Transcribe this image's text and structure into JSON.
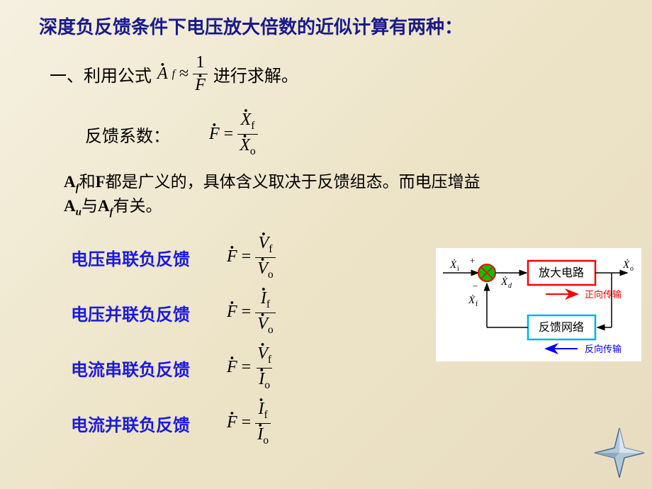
{
  "title": "深度负反馈条件下电压放大倍数的近似计算有两种：",
  "section_one": {
    "prefix": "一、利用公式",
    "suffix": "进行求解。"
  },
  "feedback_coef_label": "反馈系数：",
  "explain": {
    "part1": "A",
    "sub1": "f",
    "part2": "和",
    "part3": "F",
    "part4": "都是广义的，具体含义取决于反馈组态。而电压增益",
    "part5": "A",
    "sub5": "u",
    "part6": "与",
    "part7": "A",
    "sub7": "f",
    "part8": "有关。"
  },
  "feedback_types": [
    {
      "label": "电压串联负反馈",
      "color": "#1a1ae0",
      "num_var": "V",
      "num_sub": "f",
      "den_var": "V",
      "den_sub": "o"
    },
    {
      "label": "电压并联负反馈",
      "color": "#1a1ae0",
      "num_var": "I",
      "num_sub": "f",
      "den_var": "V",
      "den_sub": "o"
    },
    {
      "label": "电流串联负反馈",
      "color": "#1a1ae0",
      "num_var": "V",
      "num_sub": "f",
      "den_var": "I",
      "den_sub": "o"
    },
    {
      "label": "电流并联负反馈",
      "color": "#1a1ae0",
      "num_var": "I",
      "num_sub": "f",
      "den_var": "I",
      "den_sub": "o"
    }
  ],
  "diagram": {
    "amp_label": "放大电路",
    "fb_label": "反馈网络",
    "forward_label": "正向传输",
    "reverse_label": "反向传输",
    "xi": "X",
    "xi_sub": "i",
    "xd": "X",
    "xd_sub": "d",
    "xf": "X",
    "xf_sub": "f",
    "xo": "X",
    "xo_sub": "o",
    "plus": "+",
    "minus": "−",
    "colors": {
      "amp_border": "#ff0000",
      "fb_border": "#00b0f0",
      "summing_fill": "#00c000",
      "summing_border": "#ff0000",
      "forward_arrow": "#ff0000",
      "reverse_arrow": "#0000ff"
    }
  },
  "star_colors": {
    "fill": "#b0c8d8",
    "edge": "#4a6a8a"
  }
}
